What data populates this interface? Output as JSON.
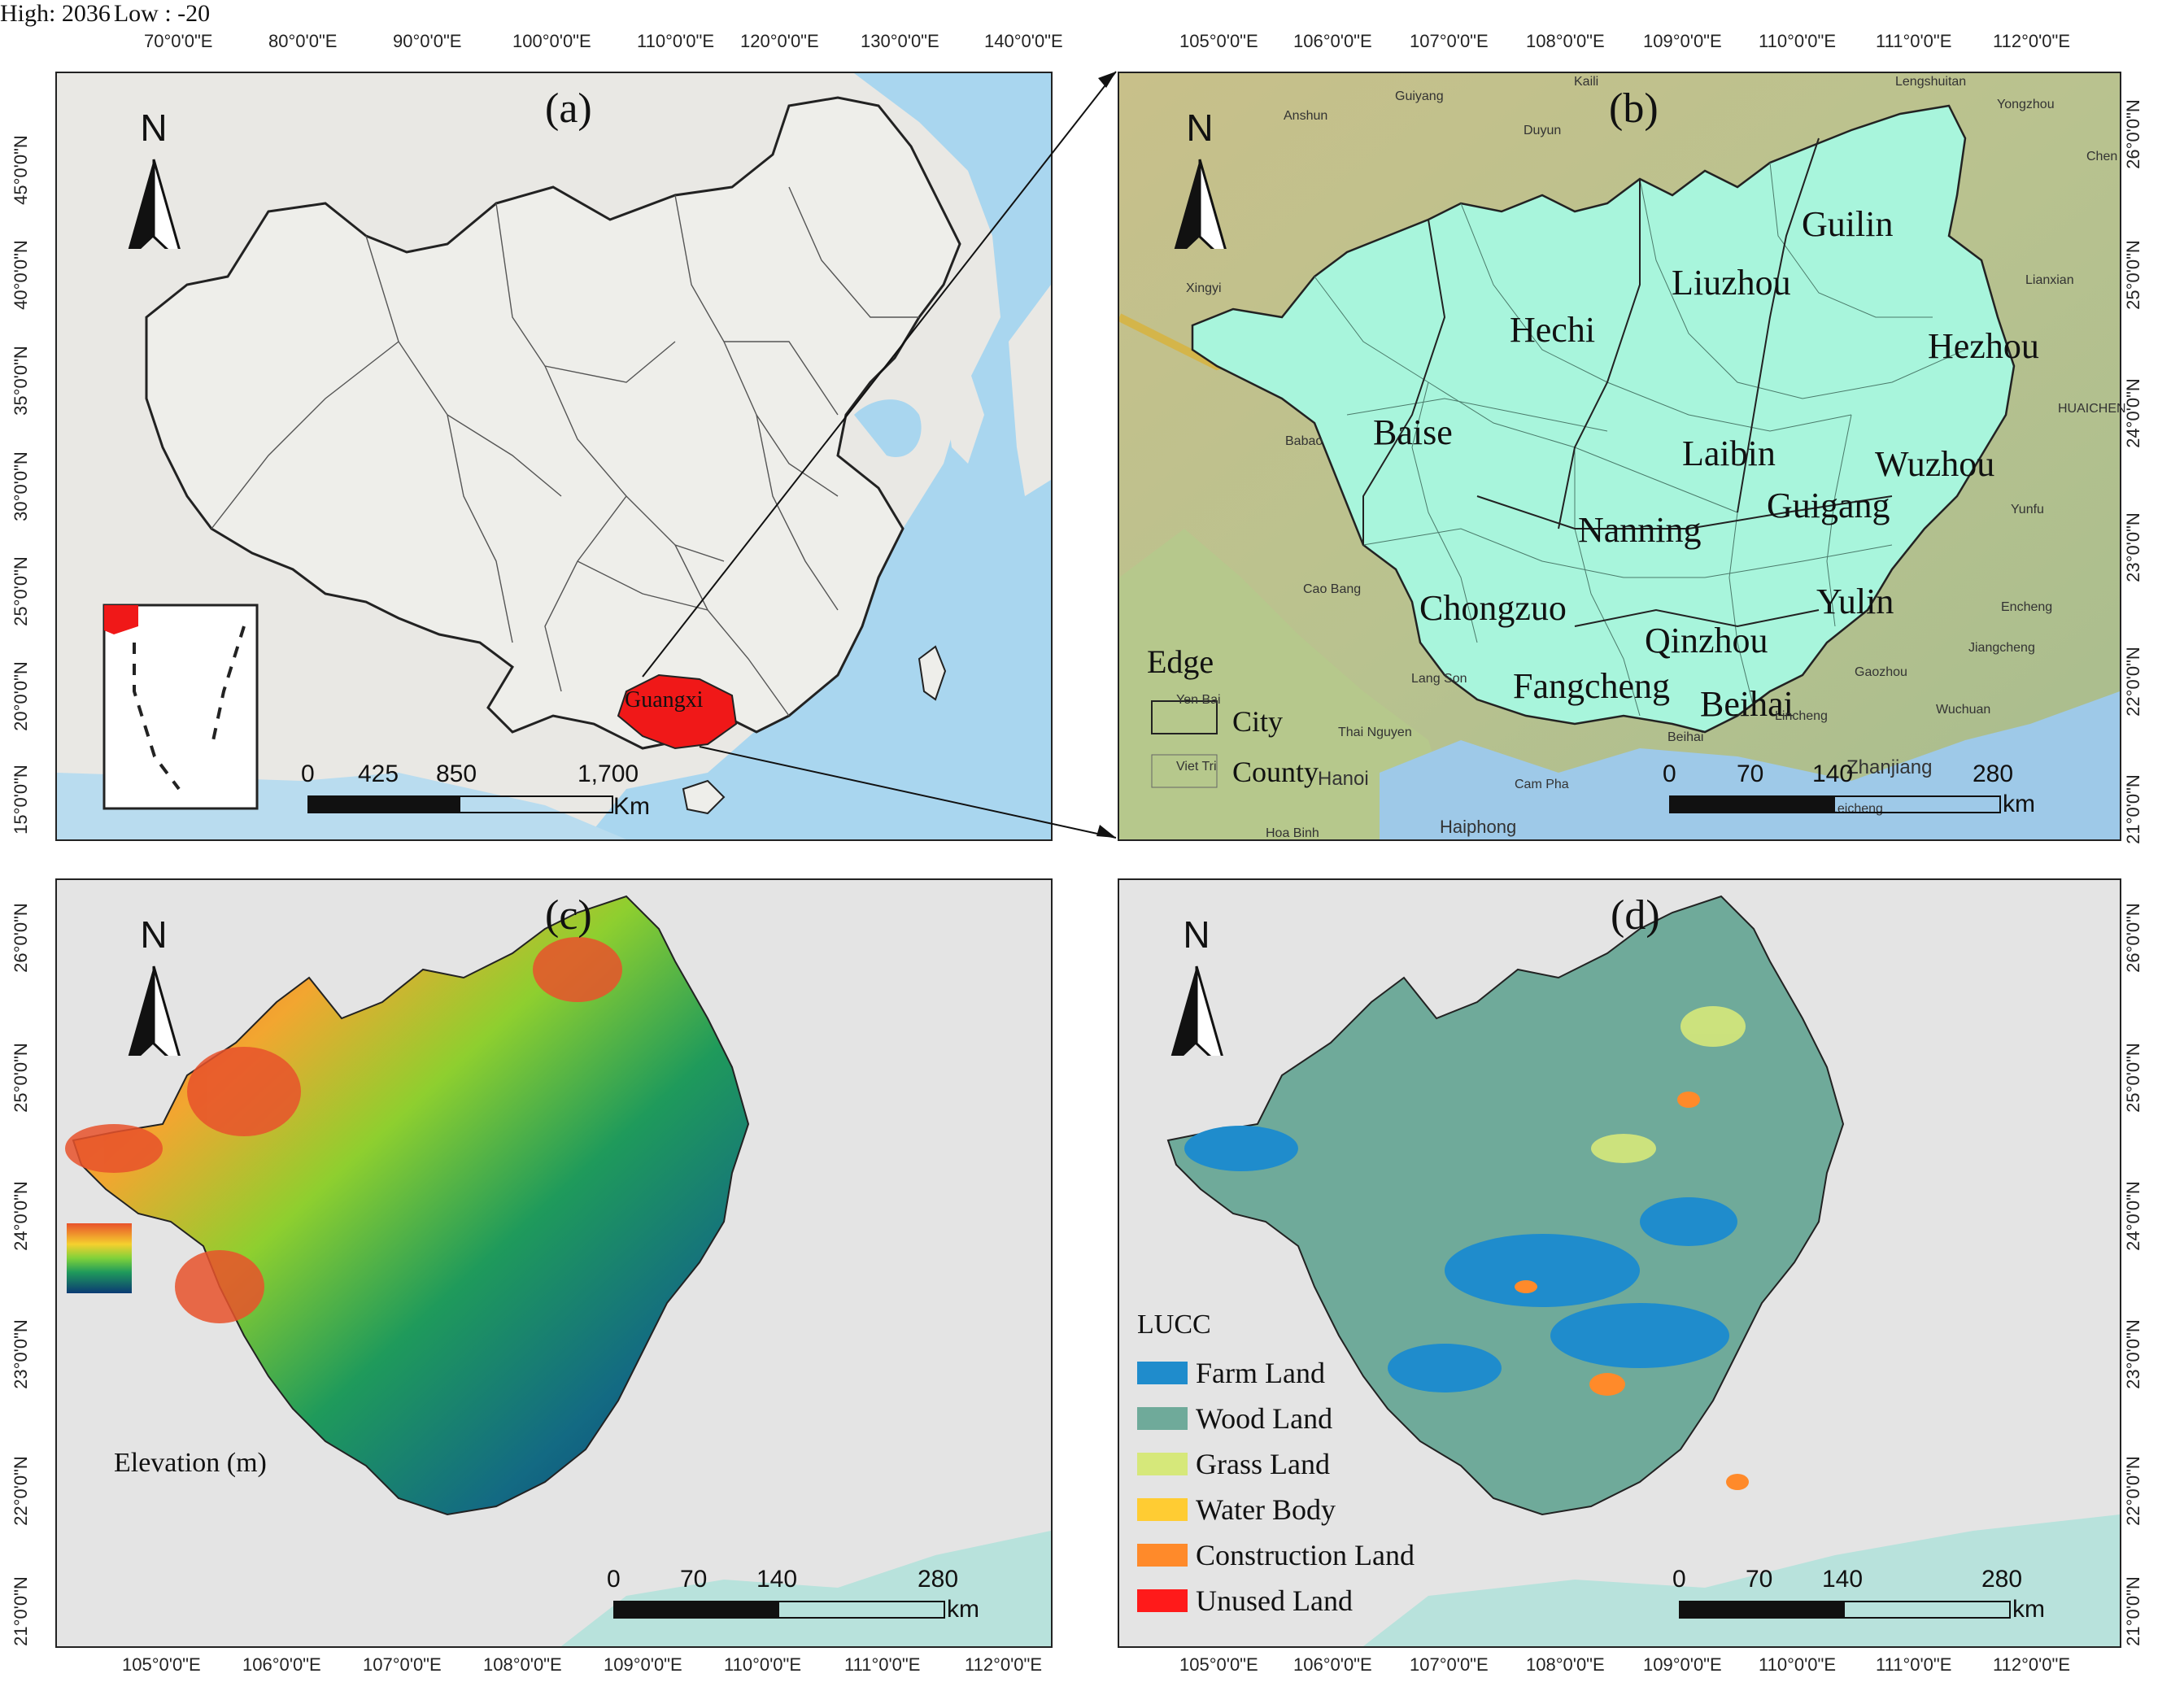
{
  "panels": {
    "a": {
      "label": "(a)",
      "x_ticks": [
        "70°0'0\"E",
        "80°0'0\"E",
        "90°0'0\"E",
        "100°0'0\"E",
        "110°0'0\"E",
        "120°0'0\"E",
        "130°0'0\"E",
        "140°0'0\"E"
      ],
      "y_ticks": [
        "45°0'0\"N",
        "40°0'0\"N",
        "35°0'0\"N",
        "30°0'0\"N",
        "25°0'0\"N",
        "20°0'0\"N",
        "15°0'0\"N"
      ],
      "region_label": "Guangxi",
      "scale": {
        "labels": [
          "0",
          "425",
          "850",
          "1,700"
        ],
        "unit": "Km"
      }
    },
    "b": {
      "label": "(b)",
      "x_ticks": [
        "105°0'0\"E",
        "106°0'0\"E",
        "107°0'0\"E",
        "108°0'0\"E",
        "109°0'0\"E",
        "110°0'0\"E",
        "111°0'0\"E",
        "112°0'0\"E"
      ],
      "y_ticks": [
        "26°0'0\"N",
        "25°0'0\"N",
        "24°0'0\"N",
        "23°0'0\"N",
        "22°0'0\"N",
        "21°0'0\"N"
      ],
      "cities": [
        "Guilin",
        "Liuzhou",
        "Hechi",
        "Hezhou",
        "Baise",
        "Laibin",
        "Wuzhou",
        "Guigang",
        "Nanning",
        "Yulin",
        "Chongzuo",
        "Qinzhou",
        "Fangcheng",
        "Beihai"
      ],
      "background_places": [
        "Guiyang",
        "Kaili",
        "Lengshuitan",
        "Yongzhou",
        "Anshun",
        "Duyun",
        "Xingyi",
        "Lianxian",
        "HUAICHEN",
        "Babao",
        "Yunfu",
        "Cao Bang",
        "Encheng",
        "Jiangcheng",
        "Lang Son",
        "Thai Nguyen",
        "Hanoi",
        "Haiphong",
        "Cam Pha",
        "Zhanjiang",
        "Wuchuan",
        "Gaozhou",
        "Lincheng",
        "Leicheng",
        "Hoa Binh",
        "Yen Bai",
        "Viet Tri",
        "Beihai",
        "Chen"
      ],
      "legend": {
        "edge": "Edge",
        "city": "City",
        "county": "County"
      },
      "scale": {
        "labels": [
          "0",
          "70",
          "140",
          "280"
        ],
        "unit": "km"
      }
    },
    "c": {
      "label": "(c)",
      "x_ticks": [
        "105°0'0\"E",
        "106°0'0\"E",
        "107°0'0\"E",
        "108°0'0\"E",
        "109°0'0\"E",
        "110°0'0\"E",
        "111°0'0\"E",
        "112°0'0\"E"
      ],
      "y_ticks": [
        "26°0'0\"N",
        "25°0'0\"N",
        "24°0'0\"N",
        "23°0'0\"N",
        "22°0'0\"N",
        "21°0'0\"N"
      ],
      "legend": {
        "title": "Elevation (m)",
        "high": "High: 2036",
        "low": "Low : -20"
      },
      "scale": {
        "labels": [
          "0",
          "70",
          "140",
          "280"
        ],
        "unit": "km"
      }
    },
    "d": {
      "label": "(d)",
      "x_ticks": [
        "105°0'0\"E",
        "106°0'0\"E",
        "107°0'0\"E",
        "108°0'0\"E",
        "109°0'0\"E",
        "110°0'0\"E",
        "111°0'0\"E",
        "112°0'0\"E"
      ],
      "y_ticks": [
        "26°0'0\"N",
        "25°0'0\"N",
        "24°0'0\"N",
        "23°0'0\"N",
        "22°0'0\"N",
        "21°0'0\"N"
      ],
      "legend": {
        "title": "LUCC",
        "items": [
          {
            "label": "Farm Land",
            "color": "#1f8ccc"
          },
          {
            "label": "Wood Land",
            "color": "#6faa9a"
          },
          {
            "label": "Grass Land",
            "color": "#d6e87a"
          },
          {
            "label": "Water Body",
            "color": "#ffcc33"
          },
          {
            "label": "Construction Land",
            "color": "#ff8a2a"
          },
          {
            "label": "Unused Land",
            "color": "#ff1a1a"
          }
        ]
      },
      "scale": {
        "labels": [
          "0",
          "70",
          "140",
          "280"
        ],
        "unit": "km"
      }
    }
  },
  "north_letter": "N",
  "colors": {
    "guangxi_fill": "#f01818",
    "panel_b_region": "#a8f5dc",
    "ocean": "#a9d6ef",
    "elevation_high": "#e8522b",
    "elevation_low": "#0b3a73"
  }
}
